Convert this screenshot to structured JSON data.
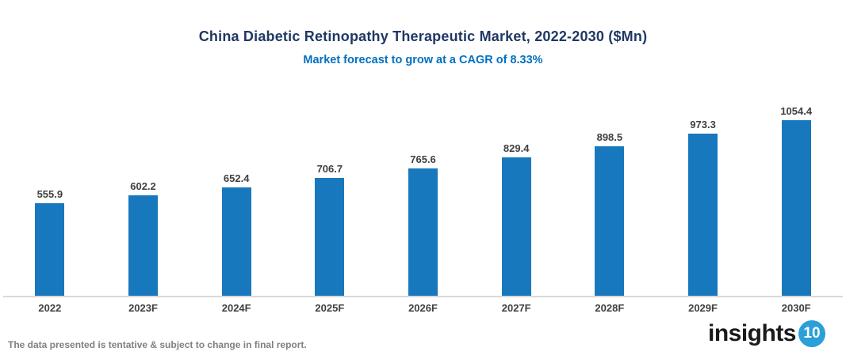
{
  "header": {
    "title": "China Diabetic Retinopathy Therapeutic Market, 2022-2030 ($Mn)",
    "subtitle": "Market forecast to grow at a CAGR of 8.33%"
  },
  "chart_data": {
    "type": "bar",
    "categories": [
      "2022",
      "2023F",
      "2024F",
      "2025F",
      "2026F",
      "2027F",
      "2028F",
      "2029F",
      "2030F"
    ],
    "values": [
      555.9,
      602.2,
      652.4,
      706.7,
      765.6,
      829.4,
      898.5,
      973.3,
      1054.4
    ],
    "title": "China Diabetic Retinopathy Therapeutic Market, 2022-2030 ($Mn)",
    "subtitle": "Market forecast to grow at a CAGR of 8.33%",
    "xlabel": "",
    "ylabel": "",
    "ylim": [
      0,
      1100
    ],
    "grid": false,
    "legend": false,
    "data_labels": true,
    "bar_color": "#1878be"
  },
  "footer": {
    "disclaimer": "The data presented is tentative & subject to change in final report.",
    "logo_text": "insights",
    "logo_badge": "10"
  },
  "colors": {
    "bar": "#1878be",
    "title": "#1f3864",
    "subtitle": "#0070c0",
    "label": "#404040",
    "axis_line": "#d9d9d9",
    "footer_text": "#808080",
    "logo_badge_bg": "#2b9fd8"
  }
}
